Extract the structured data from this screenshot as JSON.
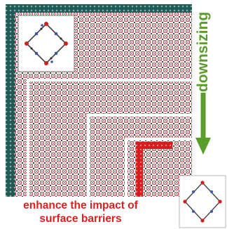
{
  "labels": {
    "arrow_label": "downsizing",
    "caption_line_1": "enhance the impact of",
    "caption_line_2": "surface barriers"
  },
  "colors": {
    "surface_teal": "#1f5a55",
    "framework_red": "#d61d1d",
    "framework_dark": "#2a2a2a",
    "arrow_green": "#5a9e2a",
    "caption_red": "#dd1f1f",
    "background": "#ffffff"
  },
  "icons": {
    "crystal_large": "mof-crystal-lattice",
    "crystal_small": "mof-crystal-lattice-small",
    "unit_cell_top": "linker-unit-cell",
    "unit_cell_bottom": "linker-unit-cell"
  }
}
